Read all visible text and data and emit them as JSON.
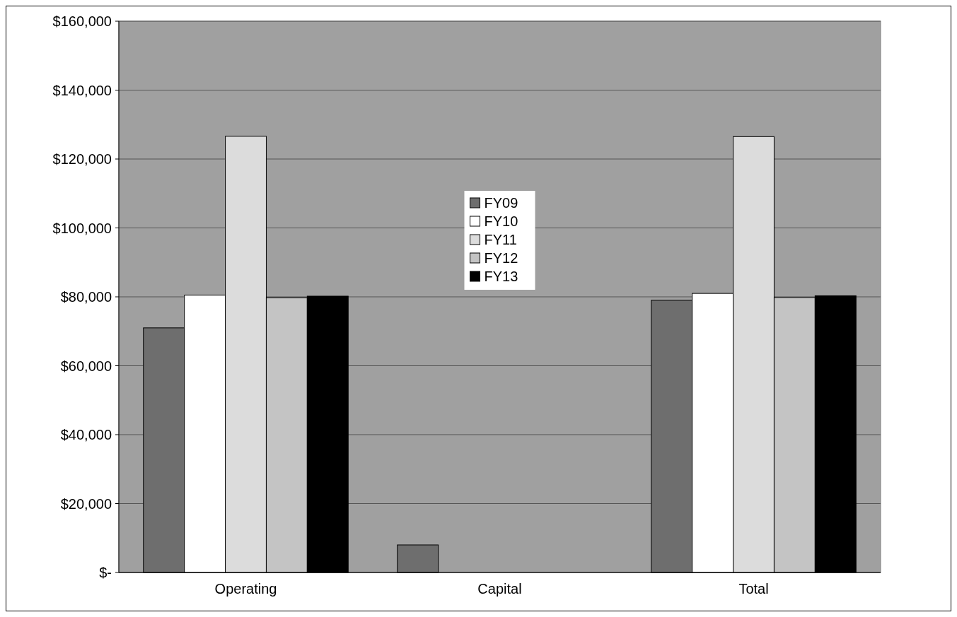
{
  "chart_data": {
    "type": "bar",
    "categories": [
      "Operating",
      "Capital",
      "Total"
    ],
    "series": [
      {
        "name": "FY09",
        "color": "#6e6e6e",
        "values": [
          71000,
          8000,
          79000
        ]
      },
      {
        "name": "FY10",
        "color": "#ffffff",
        "values": [
          80500,
          0,
          81000
        ]
      },
      {
        "name": "FY11",
        "color": "#dcdcdc",
        "values": [
          126600,
          0,
          126500
        ]
      },
      {
        "name": "FY12",
        "color": "#c4c4c4",
        "values": [
          79700,
          0,
          79800
        ]
      },
      {
        "name": "FY13",
        "color": "#000000",
        "values": [
          80200,
          0,
          80300
        ]
      }
    ],
    "ylim": [
      0,
      160000
    ],
    "yticks": [
      {
        "value": 0,
        "label": "$-"
      },
      {
        "value": 20000,
        "label": "$20,000"
      },
      {
        "value": 40000,
        "label": "$40,000"
      },
      {
        "value": 60000,
        "label": "$60,000"
      },
      {
        "value": 80000,
        "label": "$80,000"
      },
      {
        "value": 100000,
        "label": "$100,000"
      },
      {
        "value": 120000,
        "label": "$120,000"
      },
      {
        "value": 140000,
        "label": "$140,000"
      },
      {
        "value": 160000,
        "label": "$160,000"
      }
    ],
    "grid": "y",
    "legend": "center"
  }
}
